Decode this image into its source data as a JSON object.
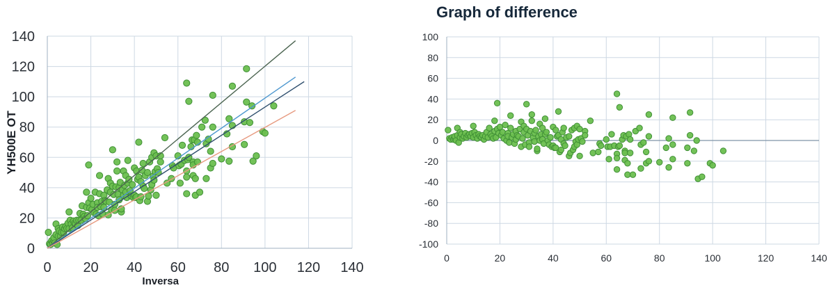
{
  "chart_data": [
    {
      "id": "scatter-regression",
      "type": "scatter",
      "title": "",
      "xlabel": "Inversa",
      "ylabel": "YH500E OT",
      "xlim": [
        0,
        140
      ],
      "ylim": [
        0,
        140
      ],
      "x_ticks": [
        "0",
        "20",
        "40",
        "60",
        "80",
        "100",
        "120",
        "140"
      ],
      "y_ticks": [
        "0",
        "20",
        "40",
        "60",
        "80",
        "100",
        "120",
        "140"
      ],
      "grid": true,
      "legend": null,
      "marker_color": "#6cbf4f",
      "marker_edge_color": "#3f8f35",
      "lines": [
        {
          "name": "upper-line",
          "color": "#4b6450",
          "x": [
            0,
            114
          ],
          "y": [
            0,
            137
          ]
        },
        {
          "name": "identity-line",
          "color": "#4d97cf",
          "x": [
            0,
            114
          ],
          "y": [
            0,
            113
          ]
        },
        {
          "name": "regression-line",
          "color": "#2f4f6e",
          "x": [
            0,
            118
          ],
          "y": [
            0,
            110
          ]
        },
        {
          "name": "lower-line",
          "color": "#e79a80",
          "x": [
            0,
            114
          ],
          "y": [
            0,
            91
          ]
        }
      ],
      "points_source": "shared_points (y = x + diff)"
    },
    {
      "id": "difference-plot",
      "type": "scatter",
      "title": "Graph of difference",
      "xlabel": "",
      "ylabel": "",
      "xlim": [
        0,
        140
      ],
      "ylim": [
        -100,
        100
      ],
      "x_ticks": [
        "0",
        "20",
        "40",
        "60",
        "80",
        "100",
        "120",
        "140"
      ],
      "y_ticks": [
        "100",
        "80",
        "60",
        "40",
        "20",
        "0",
        "-20",
        "-40",
        "-60",
        "-80",
        "-100"
      ],
      "grid": true,
      "zero_line_color": "#7f93a6",
      "legend": null,
      "marker_color": "#6cbf4f",
      "marker_edge_color": "#3f8f35",
      "points_source": "shared_points (x, diff)"
    }
  ],
  "shared_points": [
    [
      0.5,
      10
    ],
    [
      1,
      2
    ],
    [
      1.5,
      1
    ],
    [
      2,
      3
    ],
    [
      2.5,
      1
    ],
    [
      3,
      2
    ],
    [
      3,
      4
    ],
    [
      3.5,
      0
    ],
    [
      4,
      12
    ],
    [
      4,
      5
    ],
    [
      4.5,
      -2
    ],
    [
      5,
      3
    ],
    [
      5,
      8
    ],
    [
      5.5,
      6
    ],
    [
      6,
      2
    ],
    [
      6.5,
      4
    ],
    [
      7,
      7
    ],
    [
      7.5,
      3
    ],
    [
      8,
      5
    ],
    [
      8.5,
      6
    ],
    [
      9,
      4
    ],
    [
      9.5,
      7
    ],
    [
      10,
      14
    ],
    [
      10,
      3
    ],
    [
      10.5,
      8
    ],
    [
      11,
      5
    ],
    [
      11.5,
      2
    ],
    [
      12,
      6
    ],
    [
      12.5,
      4
    ],
    [
      13,
      3
    ],
    [
      13.5,
      5
    ],
    [
      14,
      1
    ],
    [
      14.5,
      4
    ],
    [
      15,
      8
    ],
    [
      15.5,
      3
    ],
    [
      16,
      12
    ],
    [
      16.5,
      6
    ],
    [
      17,
      4
    ],
    [
      17.5,
      2
    ],
    [
      18,
      19
    ],
    [
      18,
      9
    ],
    [
      18.5,
      3
    ],
    [
      19,
      36
    ],
    [
      19,
      11
    ],
    [
      19.5,
      7
    ],
    [
      20,
      13
    ],
    [
      20.5,
      5
    ],
    [
      21,
      8
    ],
    [
      21.5,
      2
    ],
    [
      22,
      15
    ],
    [
      22.5,
      0
    ],
    [
      23,
      7
    ],
    [
      23,
      4
    ],
    [
      23.5,
      -2
    ],
    [
      24,
      24
    ],
    [
      24,
      12
    ],
    [
      24.5,
      3
    ],
    [
      25,
      6
    ],
    [
      25.5,
      -3
    ],
    [
      26,
      9
    ],
    [
      26,
      1
    ],
    [
      26.5,
      5
    ],
    [
      27,
      4
    ],
    [
      27.5,
      11
    ],
    [
      28,
      18
    ],
    [
      28,
      -6
    ],
    [
      28.5,
      2
    ],
    [
      29,
      14
    ],
    [
      29,
      8
    ],
    [
      29.5,
      -4
    ],
    [
      30,
      35
    ],
    [
      30,
      11
    ],
    [
      30.5,
      5
    ],
    [
      31,
      -2
    ],
    [
      31,
      -6
    ],
    [
      31.5,
      9
    ],
    [
      32,
      25
    ],
    [
      32,
      19
    ],
    [
      32.5,
      3
    ],
    [
      33,
      7
    ],
    [
      33,
      -1
    ],
    [
      33.5,
      10
    ],
    [
      34,
      -10
    ],
    [
      34,
      -8
    ],
    [
      34.5,
      4
    ],
    [
      35,
      16
    ],
    [
      35,
      0
    ],
    [
      35.5,
      6
    ],
    [
      36,
      12
    ],
    [
      36,
      1
    ],
    [
      36.5,
      -3
    ],
    [
      37,
      21
    ],
    [
      37,
      6
    ],
    [
      37.5,
      8
    ],
    [
      38,
      0
    ],
    [
      38.5,
      -4
    ],
    [
      39,
      3
    ],
    [
      39.5,
      -6
    ],
    [
      40,
      13
    ],
    [
      40,
      -5
    ],
    [
      40.5,
      -7
    ],
    [
      41,
      10
    ],
    [
      41,
      -7
    ],
    [
      41.5,
      4
    ],
    [
      42,
      28
    ],
    [
      42,
      5
    ],
    [
      42.5,
      -11
    ],
    [
      43,
      -9
    ],
    [
      43,
      1
    ],
    [
      43.5,
      8
    ],
    [
      44,
      12
    ],
    [
      44,
      -3
    ],
    [
      44.5,
      -5
    ],
    [
      45,
      3
    ],
    [
      46,
      -15
    ],
    [
      46,
      4
    ],
    [
      46.5,
      -12
    ],
    [
      47,
      10
    ],
    [
      47.5,
      -9
    ],
    [
      48,
      12
    ],
    [
      48,
      -6
    ],
    [
      48.5,
      -1
    ],
    [
      49,
      14
    ],
    [
      49,
      -4
    ],
    [
      49.5,
      1
    ],
    [
      50,
      -15
    ],
    [
      50,
      11
    ],
    [
      50.5,
      2
    ],
    [
      51,
      -1
    ],
    [
      52,
      9
    ],
    [
      52,
      5
    ],
    [
      54,
      19
    ],
    [
      55,
      -12
    ],
    [
      57,
      -11
    ],
    [
      57.5,
      -3
    ],
    [
      58,
      -5
    ],
    [
      60,
      1
    ],
    [
      60.5,
      -6
    ],
    [
      61,
      -18
    ],
    [
      61.5,
      -6
    ],
    [
      62,
      6
    ],
    [
      63,
      -5
    ],
    [
      64,
      45
    ],
    [
      64,
      -13
    ],
    [
      64,
      -17
    ],
    [
      64,
      -28
    ],
    [
      64.5,
      -6
    ],
    [
      65,
      32
    ],
    [
      65,
      -5
    ],
    [
      66,
      1
    ],
    [
      66.5,
      5
    ],
    [
      67,
      -10
    ],
    [
      67,
      -12
    ],
    [
      67,
      -19
    ],
    [
      67.5,
      4
    ],
    [
      68,
      -22
    ],
    [
      68,
      -33
    ],
    [
      68.5,
      6
    ],
    [
      69,
      1
    ],
    [
      69,
      -12
    ],
    [
      70,
      -33
    ],
    [
      71,
      9
    ],
    [
      72.5,
      12
    ],
    [
      73,
      -4
    ],
    [
      73,
      -27
    ],
    [
      74,
      -2
    ],
    [
      75,
      -11
    ],
    [
      75,
      -22
    ],
    [
      76,
      25
    ],
    [
      76,
      4
    ],
    [
      76,
      -20
    ],
    [
      80,
      -21
    ],
    [
      82.5,
      -7
    ],
    [
      83.5,
      2
    ],
    [
      83.5,
      -26
    ],
    [
      85,
      22
    ],
    [
      85,
      -4
    ],
    [
      85,
      -18
    ],
    [
      90.5,
      -7
    ],
    [
      90.5,
      -22
    ],
    [
      91.5,
      27
    ],
    [
      91.5,
      5
    ],
    [
      93,
      -10
    ],
    [
      94,
      0
    ],
    [
      94.5,
      -37
    ],
    [
      96,
      -35
    ],
    [
      99,
      -22
    ],
    [
      100,
      -24
    ],
    [
      104,
      -10
    ]
  ]
}
